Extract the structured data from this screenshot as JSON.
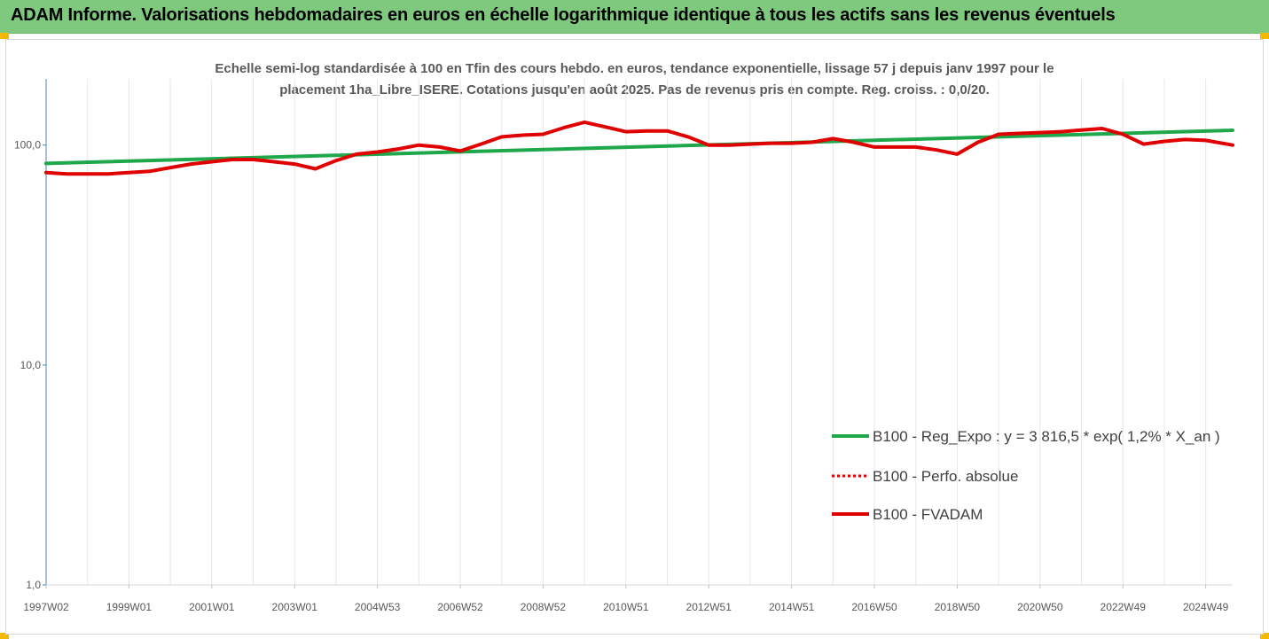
{
  "header": {
    "title": "ADAM Informe. Valorisations hebdomadaires en euros en échelle logarithmique identique à tous les actifs sans les revenus éventuels"
  },
  "chart_data": {
    "type": "line",
    "title_line1": "Echelle semi-log standardisée à 100 en Tfin des cours hebdo. en euros, tendance exponentielle, lissage 57 j depuis janv 1997 pour le",
    "title_line2": "placement 1ha_Libre_ISERE. Cotations jusqu'en août 2025. Pas de revenus pris en compte. Reg. croiss. : 0,0/20.",
    "y_scale": "log",
    "ylim": [
      1,
      200
    ],
    "y_ticks": [
      {
        "value": 1,
        "label": "1,0"
      },
      {
        "value": 10,
        "label": "10,0"
      },
      {
        "value": 100,
        "label": "100,0"
      }
    ],
    "x_range": [
      1997.0,
      2025.65
    ],
    "x_ticks": [
      {
        "label": "1997W02",
        "year": 1997.0
      },
      {
        "label": "1999W01",
        "year": 1999.0
      },
      {
        "label": "2001W01",
        "year": 2001.0
      },
      {
        "label": "2003W01",
        "year": 2003.0
      },
      {
        "label": "2004W53",
        "year": 2005.0
      },
      {
        "label": "2006W52",
        "year": 2007.0
      },
      {
        "label": "2008W52",
        "year": 2009.0
      },
      {
        "label": "2010W51",
        "year": 2011.0
      },
      {
        "label": "2012W51",
        "year": 2013.0
      },
      {
        "label": "2014W51",
        "year": 2015.0
      },
      {
        "label": "2016W50",
        "year": 2017.0
      },
      {
        "label": "2018W50",
        "year": 2019.0
      },
      {
        "label": "2020W50",
        "year": 2021.0
      },
      {
        "label": "2022W49",
        "year": 2023.0
      },
      {
        "label": "2024W49",
        "year": 2025.0
      }
    ],
    "grid": "vertical",
    "legend_position": "right",
    "series": [
      {
        "name": "B100 - Reg_Expo : y = 3 816,5 * exp( 1,2% *  X_an )",
        "color": "#1fa84b",
        "style": "solid",
        "x": [
          1997.0,
          2025.65
        ],
        "values": [
          82.5,
          116.8
        ]
      },
      {
        "name": "B100 - Perfo. absolue",
        "color": "#e00000",
        "style": "dotted",
        "x": [],
        "values": []
      },
      {
        "name": "B100 - FVADAM",
        "color": "#e00000",
        "style": "solid",
        "x": [
          1997.0,
          1997.5,
          1998.0,
          1998.5,
          1999.0,
          1999.5,
          2000.0,
          2000.5,
          2001.0,
          2001.5,
          2002.0,
          2002.5,
          2003.0,
          2003.5,
          2004.0,
          2004.5,
          2005.0,
          2005.5,
          2006.0,
          2006.5,
          2007.0,
          2007.5,
          2008.0,
          2008.5,
          2009.0,
          2009.5,
          2010.0,
          2010.5,
          2011.0,
          2011.5,
          2012.0,
          2012.5,
          2013.0,
          2013.5,
          2014.0,
          2014.5,
          2015.0,
          2015.5,
          2016.0,
          2016.5,
          2017.0,
          2017.5,
          2018.0,
          2018.5,
          2019.0,
          2019.5,
          2020.0,
          2020.5,
          2021.0,
          2021.5,
          2022.0,
          2022.5,
          2023.0,
          2023.5,
          2024.0,
          2024.5,
          2025.0,
          2025.65
        ],
        "values": [
          75,
          74,
          74,
          74,
          75,
          76,
          79,
          82,
          84,
          86,
          86,
          84,
          82,
          78,
          85,
          91,
          93,
          96,
          100,
          98,
          94,
          101,
          109,
          111,
          112,
          120,
          127,
          121,
          115,
          116,
          116,
          109,
          100,
          100,
          101,
          102,
          102,
          103,
          107,
          103,
          98,
          98,
          98,
          95,
          91,
          103,
          112,
          113,
          114,
          115,
          117,
          119,
          112,
          101,
          104,
          106,
          105,
          100
        ]
      }
    ]
  }
}
